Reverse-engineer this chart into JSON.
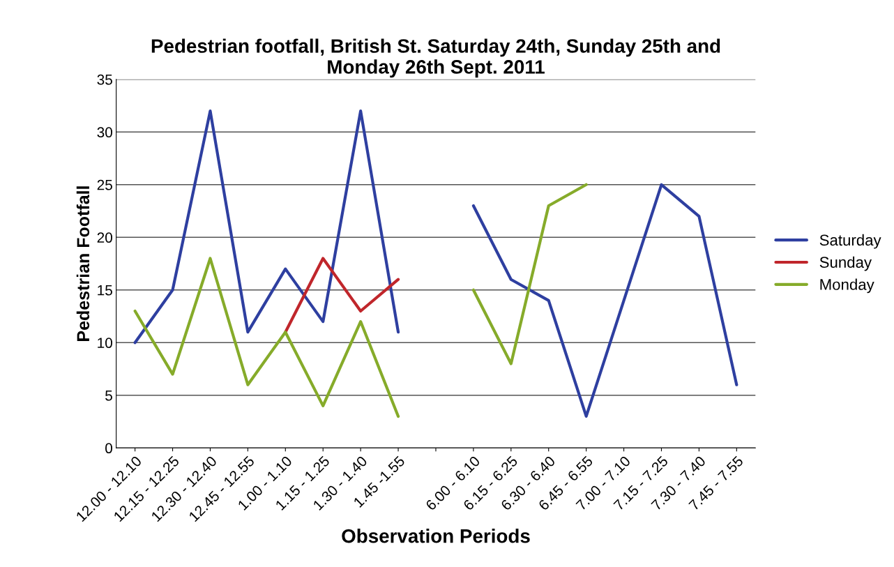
{
  "chart_data": {
    "type": "line",
    "title": "Pedestrian footfall, British St. Saturday 24th, Sunday 25th and\nMonday 26th Sept. 2011",
    "xlabel": "Observation Periods",
    "ylabel": "Pedestrian Footfall",
    "categories": [
      "12.00 - 12.10",
      "12.15 - 12.25",
      "12.30 - 12.40",
      "12.45 - 12.55",
      "1.00 - 1.10",
      "1.15 - 1.25",
      "1.30 - 1.40",
      "1.45 -1.55",
      null,
      "6.00 - 6.10",
      "6.15 - 6.25",
      "6.30 - 6.40",
      "6.45 - 6.55",
      "7.00 - 7.10",
      "7.15 - 7.25",
      "7.30 - 7.40",
      "7.45 - 7.55"
    ],
    "series": [
      {
        "name": "Saturday",
        "color": "#2e3fa0",
        "values": [
          10,
          15,
          32,
          11,
          17,
          12,
          32,
          11,
          null,
          23,
          16,
          14,
          3,
          14,
          25,
          22,
          6
        ]
      },
      {
        "name": "Sunday",
        "color": "#c0262b",
        "values": [
          null,
          null,
          null,
          null,
          11,
          18,
          13,
          16,
          null,
          null,
          null,
          null,
          null,
          null,
          null,
          null,
          null
        ]
      },
      {
        "name": "Monday",
        "color": "#86ab2a",
        "values": [
          13,
          7,
          18,
          6,
          11,
          4,
          12,
          3,
          null,
          15,
          8,
          23,
          25,
          null,
          null,
          null,
          null
        ]
      }
    ],
    "ylim": [
      0,
      35
    ],
    "yticks": [
      0,
      5,
      10,
      15,
      20,
      25,
      30,
      35
    ],
    "grid": "y",
    "legend": "right",
    "marker": "none",
    "line_style": "solid"
  }
}
